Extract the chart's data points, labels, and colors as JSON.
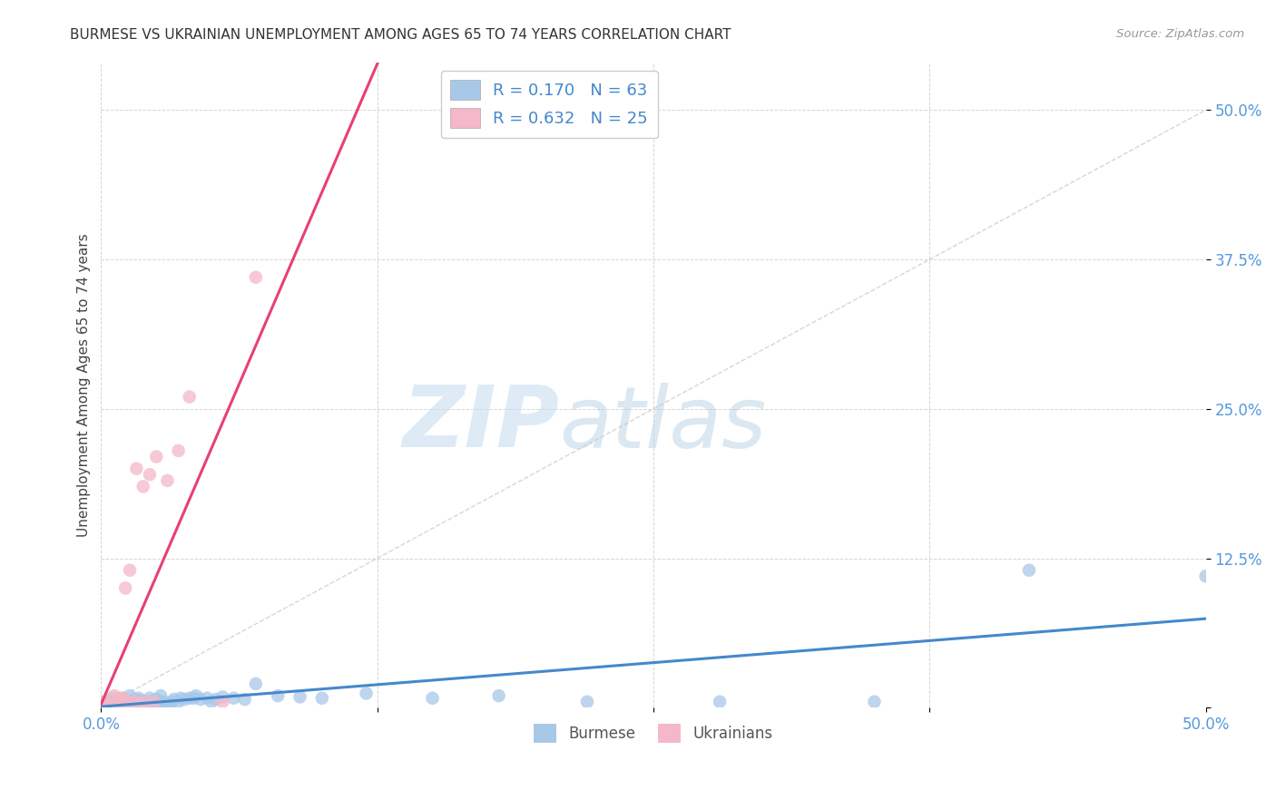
{
  "title": "BURMESE VS UKRAINIAN UNEMPLOYMENT AMONG AGES 65 TO 74 YEARS CORRELATION CHART",
  "source": "Source: ZipAtlas.com",
  "ylabel_label": "Unemployment Among Ages 65 to 74 years",
  "xlim": [
    0.0,
    0.5
  ],
  "ylim": [
    0.0,
    0.54
  ],
  "burmese_color": "#a8c8e8",
  "ukrainian_color": "#f4b8c8",
  "burmese_R": 0.17,
  "burmese_N": 63,
  "ukrainian_R": 0.632,
  "ukrainian_N": 25,
  "trend_color_burmese": "#4488cc",
  "trend_color_ukrainian": "#e84070",
  "diagonal_color": "#cccccc",
  "watermark_zip": "ZIP",
  "watermark_atlas": "atlas",
  "burmese_x": [
    0.0,
    0.002,
    0.003,
    0.004,
    0.005,
    0.005,
    0.006,
    0.007,
    0.008,
    0.008,
    0.009,
    0.01,
    0.01,
    0.011,
    0.012,
    0.013,
    0.013,
    0.014,
    0.015,
    0.015,
    0.016,
    0.017,
    0.018,
    0.018,
    0.019,
    0.02,
    0.021,
    0.022,
    0.023,
    0.024,
    0.025,
    0.026,
    0.027,
    0.028,
    0.029,
    0.03,
    0.032,
    0.033,
    0.035,
    0.036,
    0.038,
    0.04,
    0.042,
    0.043,
    0.045,
    0.048,
    0.05,
    0.052,
    0.055,
    0.06,
    0.065,
    0.07,
    0.08,
    0.09,
    0.1,
    0.12,
    0.15,
    0.18,
    0.22,
    0.28,
    0.35,
    0.42,
    0.5
  ],
  "burmese_y": [
    0.005,
    0.004,
    0.005,
    0.003,
    0.005,
    0.008,
    0.004,
    0.006,
    0.003,
    0.005,
    0.004,
    0.005,
    0.008,
    0.004,
    0.003,
    0.005,
    0.01,
    0.004,
    0.003,
    0.007,
    0.005,
    0.008,
    0.004,
    0.006,
    0.003,
    0.005,
    0.004,
    0.008,
    0.005,
    0.003,
    0.007,
    0.004,
    0.01,
    0.005,
    0.004,
    0.003,
    0.005,
    0.007,
    0.005,
    0.008,
    0.007,
    0.008,
    0.008,
    0.01,
    0.007,
    0.008,
    0.005,
    0.007,
    0.009,
    0.008,
    0.007,
    0.02,
    0.01,
    0.009,
    0.008,
    0.012,
    0.008,
    0.01,
    0.005,
    0.005,
    0.005,
    0.115,
    0.11
  ],
  "ukrainian_x": [
    0.0,
    0.002,
    0.003,
    0.005,
    0.006,
    0.007,
    0.008,
    0.009,
    0.01,
    0.011,
    0.012,
    0.013,
    0.015,
    0.016,
    0.018,
    0.019,
    0.02,
    0.022,
    0.024,
    0.025,
    0.03,
    0.035,
    0.04,
    0.055,
    0.07
  ],
  "ukrainian_y": [
    0.004,
    0.003,
    0.005,
    0.004,
    0.01,
    0.003,
    0.008,
    0.005,
    0.008,
    0.1,
    0.005,
    0.115,
    0.005,
    0.2,
    0.004,
    0.185,
    0.005,
    0.195,
    0.005,
    0.21,
    0.19,
    0.215,
    0.26,
    0.005,
    0.36
  ]
}
